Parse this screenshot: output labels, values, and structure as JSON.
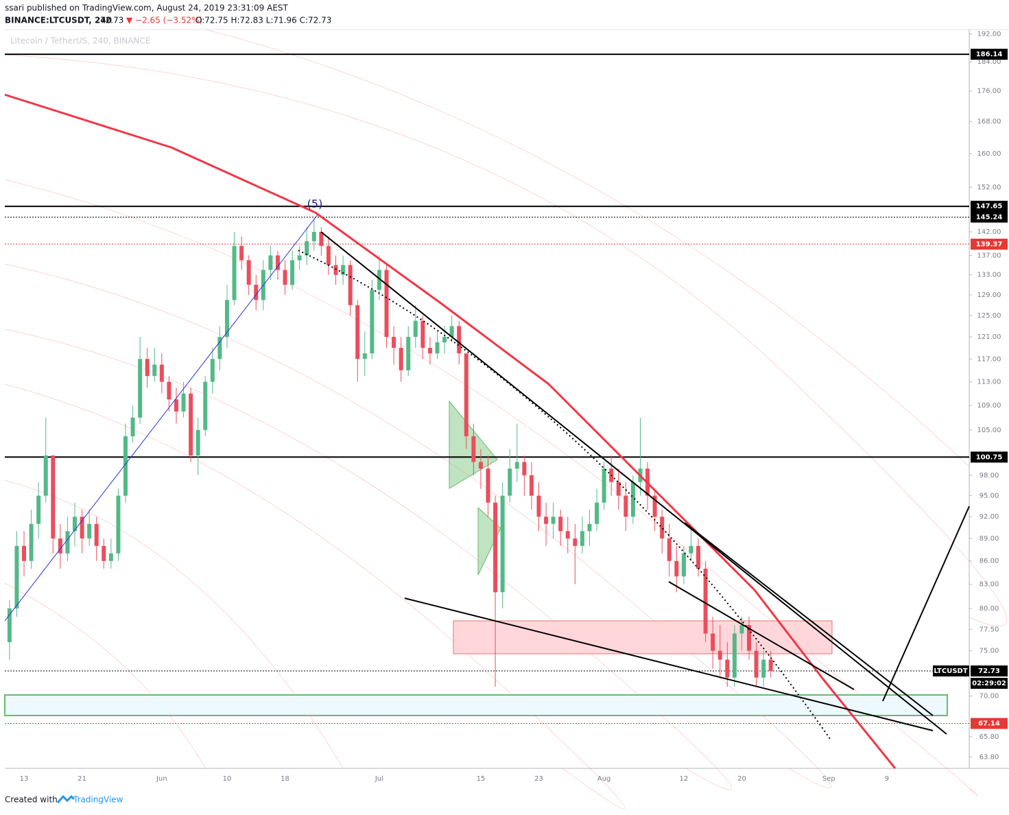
{
  "header": {
    "publisher": "ssari published on TradingView.com, August 24, 2019 23:31:09 AEST",
    "symbol": "BINANCE:LTCUSDT, 240",
    "last": "72.73",
    "change": "▼ −2.65 (−3.52%)",
    "ohlc": "O:72.75 H:72.83 L:71.96 C:72.73"
  },
  "chart_data": {
    "type": "candlestick",
    "watermark": "Litecoin / TetherUS, 240, BINANCE",
    "log_scale": true,
    "ylim": [
      62.7,
      193.3
    ],
    "yticks": [
      {
        "value": 192,
        "label": "192.00"
      },
      {
        "value": 184,
        "label": "184.00"
      },
      {
        "value": 176,
        "label": "176.00"
      },
      {
        "value": 168,
        "label": "168.00"
      },
      {
        "value": 160,
        "label": "160.00"
      },
      {
        "value": 152,
        "label": "152.00"
      },
      {
        "value": 142,
        "label": "142.00"
      },
      {
        "value": 137,
        "label": "137.00"
      },
      {
        "value": 133,
        "label": "133.00"
      },
      {
        "value": 129,
        "label": "129.00"
      },
      {
        "value": 125,
        "label": "125.00"
      },
      {
        "value": 121,
        "label": "121.00"
      },
      {
        "value": 117,
        "label": "117.00"
      },
      {
        "value": 113,
        "label": "113.00"
      },
      {
        "value": 109,
        "label": "109.00"
      },
      {
        "value": 105,
        "label": "105.00"
      },
      {
        "value": 98,
        "label": "98.00"
      },
      {
        "value": 95,
        "label": "95.00"
      },
      {
        "value": 92,
        "label": "92.00"
      },
      {
        "value": 89,
        "label": "89.00"
      },
      {
        "value": 86,
        "label": "86.00"
      },
      {
        "value": 83,
        "label": "83.00"
      },
      {
        "value": 80,
        "label": "80.00"
      },
      {
        "value": 77.5,
        "label": "77.50"
      },
      {
        "value": 75,
        "label": "75.00"
      },
      {
        "value": 70,
        "label": "70.00"
      },
      {
        "value": 65.8,
        "label": "65.80"
      },
      {
        "value": 63.8,
        "label": "63.80"
      }
    ],
    "levels": [
      {
        "value": 186.14,
        "color": "#000000",
        "dashed": false
      },
      {
        "value": 147.65,
        "color": "#000000",
        "dashed": false
      },
      {
        "value": 145.24,
        "color": "#000000",
        "dashed": true
      },
      {
        "value": 139.37,
        "color": "#e53935",
        "dashed": true
      },
      {
        "value": 100.75,
        "color": "#000000",
        "dashed": false
      },
      {
        "value": 72.73,
        "color": "#000000",
        "dashed": true
      },
      {
        "value": 67.14,
        "color": "#e53935",
        "dashed": true
      }
    ],
    "symbol_label": "LTCUSDT",
    "countdown": "02:29:02",
    "wave_label": "(5)",
    "up_color": "#53b987",
    "down_color": "#eb4d5c",
    "categories": [
      null,
      null,
      "13",
      null,
      null,
      null,
      null,
      null,
      null,
      null,
      "21",
      null,
      null,
      null,
      null,
      null,
      null,
      null,
      null,
      null,
      null,
      "Jun",
      null,
      null,
      null,
      null,
      null,
      null,
      null,
      null,
      "10",
      null,
      null,
      null,
      null,
      null,
      null,
      null,
      "18",
      null,
      null,
      null,
      null,
      null,
      null,
      null,
      null,
      null,
      null,
      null,
      null,
      "Jul",
      null,
      null,
      null,
      null,
      null,
      null,
      null,
      null,
      null,
      null,
      null,
      null,
      null,
      "15",
      null,
      null,
      null,
      null,
      null,
      null,
      null,
      "23",
      null,
      null,
      null,
      null,
      null,
      null,
      null,
      null,
      "Aug",
      null,
      null,
      null,
      null,
      null,
      null,
      null,
      null,
      null,
      null,
      "12",
      null,
      null,
      null,
      null,
      null,
      null,
      null,
      "20",
      null,
      null,
      null,
      null,
      null,
      null,
      null,
      null,
      null,
      null,
      null,
      "Sep",
      null,
      null,
      null,
      null,
      null,
      null,
      null,
      "9",
      null,
      null,
      null,
      null,
      null,
      null,
      null,
      null,
      null,
      null,
      null
    ],
    "open": [
      76,
      80,
      88,
      86,
      91,
      95,
      101,
      89,
      87,
      90,
      92,
      89,
      91,
      88,
      86,
      87,
      95,
      104,
      107,
      117,
      114,
      116,
      113,
      110,
      108,
      111,
      101,
      105,
      113,
      117,
      121,
      128,
      139,
      136,
      131,
      128,
      134,
      137,
      134,
      131,
      136,
      137,
      140,
      142,
      139,
      135,
      133,
      135,
      127,
      117,
      118,
      130,
      134,
      121,
      119,
      115,
      121,
      124,
      119,
      118,
      120,
      121,
      123,
      118,
      104,
      100,
      99,
      94,
      82,
      95,
      99,
      100,
      98,
      95,
      92,
      91,
      92,
      90,
      89,
      88,
      90,
      91,
      94,
      99,
      97,
      95,
      92,
      97,
      99,
      95,
      92,
      89,
      86,
      84,
      87,
      88,
      85,
      77,
      75,
      74,
      72,
      77,
      78,
      75,
      72,
      74,
      null,
      null,
      null,
      null,
      null,
      null,
      null,
      null,
      null,
      null,
      null,
      null,
      null,
      null,
      null,
      null,
      null,
      null,
      null,
      null,
      null,
      null,
      null,
      null,
      null,
      null,
      null
    ],
    "high": [
      81,
      90,
      90,
      93,
      97,
      107,
      101,
      91,
      92,
      94,
      93,
      93,
      92,
      89,
      89,
      96,
      106,
      109,
      121,
      119,
      119,
      118,
      114,
      112,
      113,
      112,
      107,
      114,
      119,
      123,
      131,
      142,
      141,
      137,
      133,
      136,
      139,
      138,
      136,
      138,
      139,
      143,
      145,
      143,
      141,
      137,
      137,
      136,
      128,
      122,
      132,
      137,
      135,
      123,
      121,
      123,
      127,
      125,
      121,
      122,
      123,
      125,
      124,
      118,
      106,
      102,
      101,
      95,
      97,
      102,
      106,
      101,
      100,
      97,
      94,
      94,
      93,
      92,
      91,
      92,
      93,
      96,
      100,
      101,
      99,
      97,
      98,
      107,
      100,
      96,
      93,
      91,
      88,
      88,
      91,
      89,
      86,
      79,
      78,
      76,
      78,
      79,
      79,
      76,
      75,
      75,
      null,
      null,
      null,
      null,
      null,
      null,
      null,
      null,
      null,
      null,
      null,
      null,
      null,
      null,
      null,
      null,
      null,
      null,
      null,
      null,
      null,
      null,
      null,
      null,
      null,
      null,
      null
    ],
    "low": [
      74,
      79,
      84,
      85,
      89,
      94,
      87,
      85,
      86,
      88,
      87,
      88,
      86,
      85,
      85,
      86,
      94,
      103,
      106,
      112,
      113,
      111,
      108,
      106,
      107,
      100,
      98,
      104,
      111,
      115,
      119,
      127,
      134,
      129,
      126,
      126,
      132,
      132,
      129,
      130,
      134,
      135,
      138,
      137,
      133,
      131,
      131,
      125,
      113,
      114,
      117,
      128,
      119,
      116,
      113,
      114,
      119,
      117,
      116,
      117,
      118,
      120,
      116,
      102,
      98,
      96,
      92,
      71,
      80,
      94,
      97,
      95,
      93,
      90,
      88,
      89,
      88,
      87,
      83,
      87,
      88,
      90,
      93,
      95,
      93,
      90,
      91,
      95,
      93,
      90,
      87,
      84,
      82,
      83,
      86,
      84,
      76,
      73,
      72,
      71,
      71,
      75,
      74,
      71,
      71,
      72,
      null,
      null,
      null,
      null,
      null,
      null,
      null,
      null,
      null,
      null,
      null,
      null,
      null,
      null,
      null,
      null,
      null,
      null,
      null,
      null,
      null,
      null,
      null,
      null,
      null,
      null,
      null
    ],
    "close": [
      80,
      88,
      86,
      91,
      95,
      101,
      89,
      87,
      90,
      92,
      89,
      91,
      88,
      86,
      87,
      95,
      104,
      107,
      117,
      114,
      116,
      113,
      110,
      108,
      111,
      101,
      105,
      113,
      117,
      121,
      128,
      139,
      136,
      131,
      128,
      134,
      137,
      134,
      131,
      136,
      137,
      140,
      142,
      139,
      135,
      133,
      135,
      127,
      117,
      118,
      130,
      134,
      121,
      119,
      115,
      121,
      124,
      119,
      118,
      120,
      121,
      123,
      118,
      104,
      100,
      99,
      94,
      82,
      95,
      99,
      100,
      98,
      95,
      92,
      91,
      92,
      90,
      89,
      88,
      90,
      91,
      94,
      99,
      97,
      95,
      92,
      97,
      99,
      95,
      92,
      89,
      86,
      84,
      87,
      88,
      85,
      77,
      75,
      74,
      72,
      77,
      78,
      75,
      72,
      74,
      72.73,
      null,
      null,
      null,
      null,
      null,
      null,
      null,
      null,
      null,
      null,
      null,
      null,
      null,
      null,
      null,
      null,
      null,
      null,
      null,
      null,
      null,
      null,
      null,
      null,
      null,
      null,
      null
    ]
  },
  "footer": {
    "created": "Created with",
    "brand": "TradingView"
  }
}
